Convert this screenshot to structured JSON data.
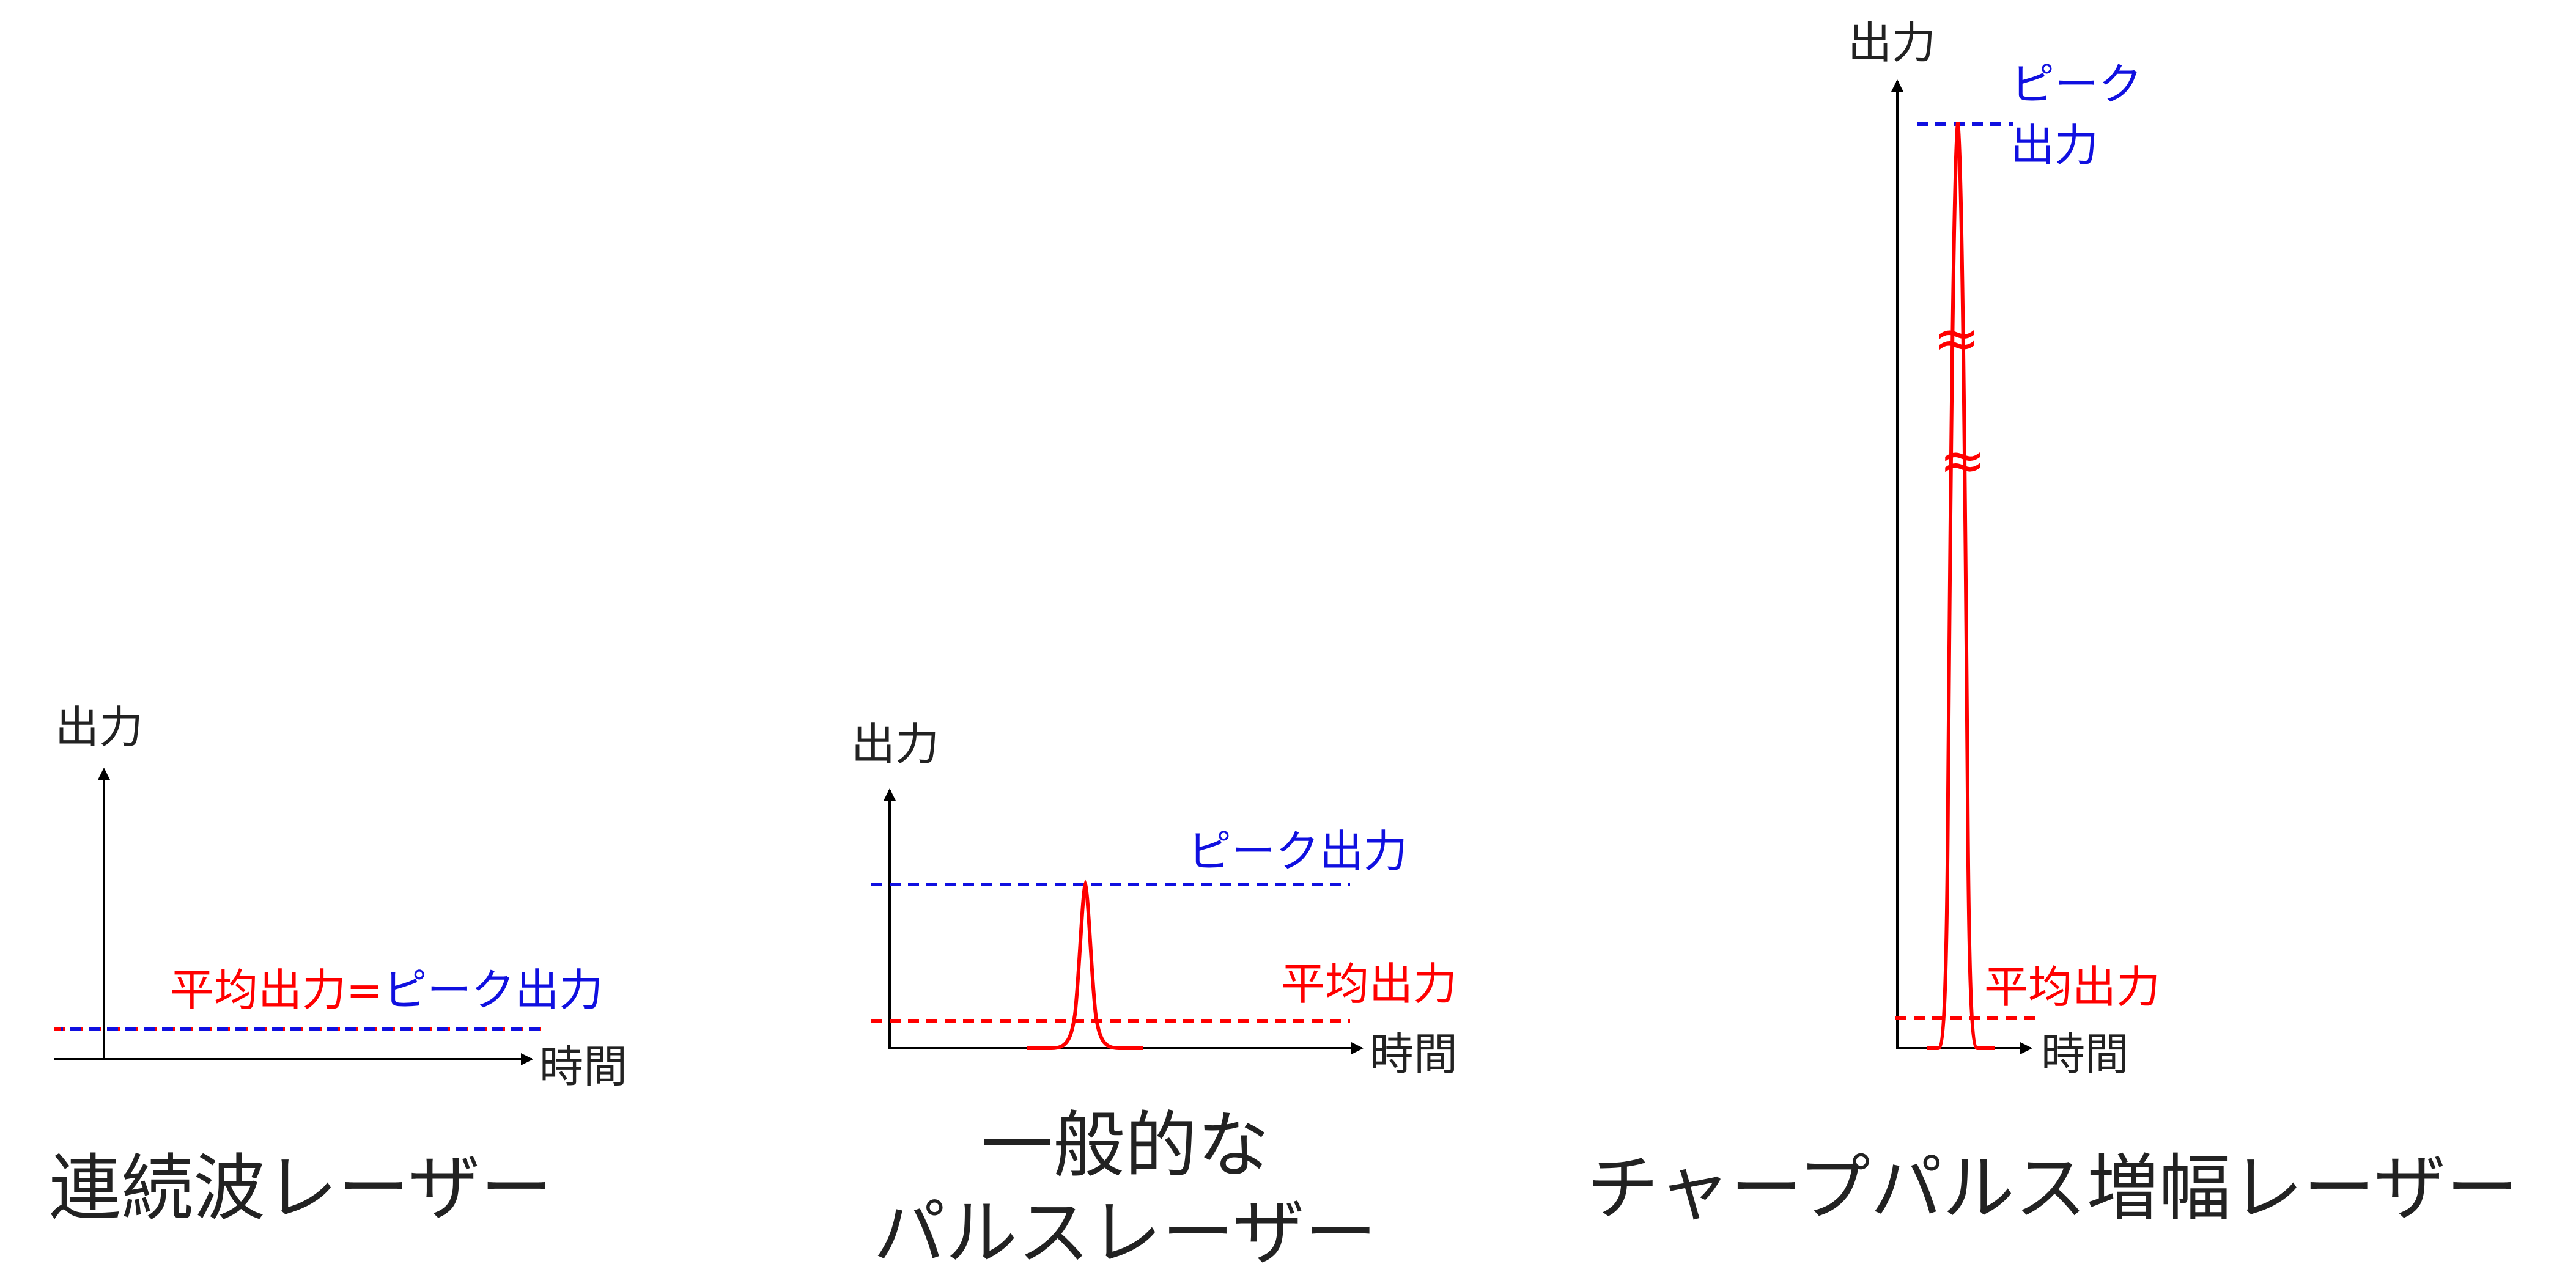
{
  "colors": {
    "peak": "#1010e0",
    "average": "#ff0000",
    "axis": "#000000",
    "text": "#222222"
  },
  "panels": {
    "cw": {
      "y_axis_label": "出力",
      "x_axis_label": "時間",
      "label_average": "平均出力",
      "label_equals": "=",
      "label_peak": "ピーク出力",
      "title": "連続波レーザー"
    },
    "pulse": {
      "y_axis_label": "出力",
      "x_axis_label": "時間",
      "label_peak": "ピーク出力",
      "label_average": "平均出力",
      "title_line1": "一般的な",
      "title_line2": "パルスレーザー"
    },
    "cpa": {
      "y_axis_label": "出力",
      "x_axis_label": "時間",
      "label_peak_line1": "ピーク",
      "label_peak_line2": "出力",
      "label_average": "平均出力",
      "break_mark": "≈",
      "title": "チャープパルス増幅レーザー"
    }
  }
}
